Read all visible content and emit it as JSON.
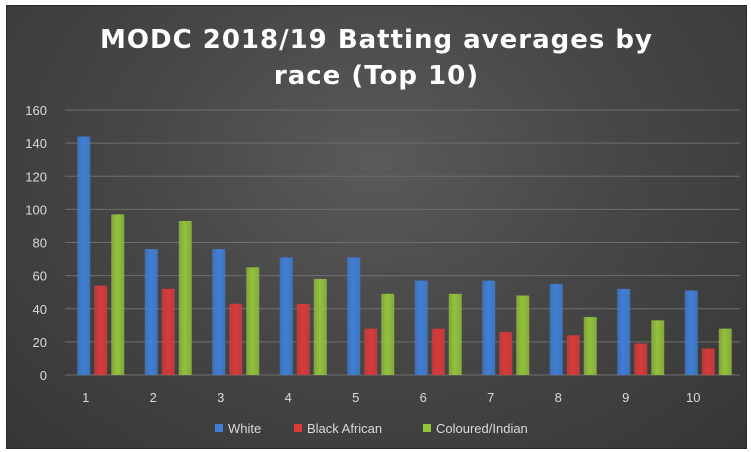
{
  "chart_data": {
    "type": "bar",
    "title_lines": [
      "MODC 2018/19 Batting averages by",
      "race (Top 10)"
    ],
    "categories": [
      "1",
      "2",
      "3",
      "4",
      "5",
      "6",
      "7",
      "8",
      "9",
      "10"
    ],
    "series": [
      {
        "name": "White",
        "color": "#3f7fd6",
        "values": [
          144,
          76,
          76,
          71,
          71,
          57,
          57,
          55,
          52,
          51
        ]
      },
      {
        "name": "Black African",
        "color": "#d93a3a",
        "values": [
          54,
          52,
          43,
          43,
          28,
          28,
          26,
          24,
          19,
          16
        ]
      },
      {
        "name": "Coloured/Indian",
        "color": "#93c23b",
        "values": [
          97,
          93,
          65,
          58,
          49,
          49,
          48,
          35,
          33,
          28
        ]
      }
    ],
    "ylim": [
      0,
      160
    ],
    "y_ticks": [
      "0",
      "20",
      "40",
      "60",
      "80",
      "100",
      "120",
      "140",
      "160"
    ],
    "grid": true,
    "legend_position": "bottom"
  }
}
